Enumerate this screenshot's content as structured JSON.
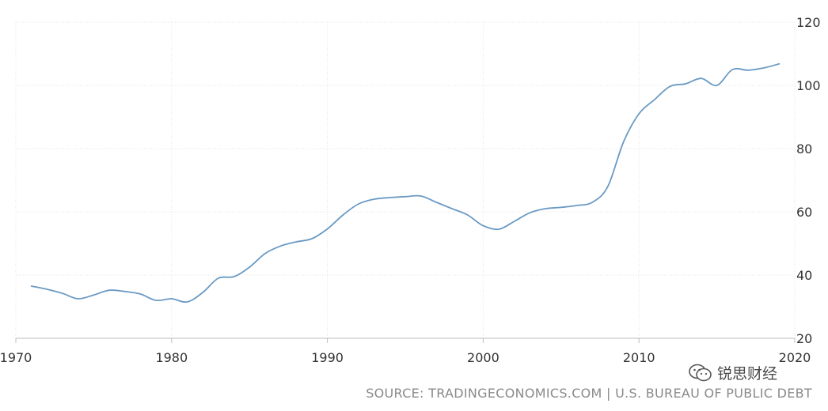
{
  "chart_data": {
    "type": "line",
    "title": "",
    "xlabel": "",
    "ylabel": "",
    "xlim": [
      1970,
      2020
    ],
    "ylim": [
      20,
      120
    ],
    "x_ticks": [
      "1970",
      "1980",
      "1990",
      "2000",
      "2010",
      "2020"
    ],
    "y_ticks": [
      "20",
      "40",
      "60",
      "80",
      "100",
      "120"
    ],
    "grid": true,
    "legend": "none",
    "series": [
      {
        "color": "#6a9ac4",
        "x": [
          1971,
          1972,
          1973,
          1974,
          1975,
          1976,
          1977,
          1978,
          1979,
          1980,
          1981,
          1982,
          1983,
          1984,
          1985,
          1986,
          1987,
          1988,
          1989,
          1990,
          1991,
          1992,
          1993,
          1994,
          1995,
          1996,
          1997,
          1998,
          1999,
          2000,
          2001,
          2002,
          2003,
          2004,
          2005,
          2006,
          2007,
          2008,
          2009,
          2010,
          2011,
          2012,
          2013,
          2014,
          2015,
          2016,
          2017,
          2018,
          2019
        ],
        "y": [
          36.5,
          35.5,
          34.2,
          32.5,
          33.7,
          35.2,
          34.8,
          34.0,
          32.0,
          32.5,
          31.5,
          34.5,
          39.0,
          39.5,
          42.5,
          46.8,
          49.2,
          50.5,
          51.5,
          54.6,
          59.0,
          62.5,
          64.0,
          64.5,
          64.8,
          65.0,
          63.0,
          61.0,
          59.0,
          55.6,
          54.5,
          57.0,
          59.7,
          61.0,
          61.4,
          62.0,
          63.0,
          68.0,
          82.0,
          91.0,
          95.5,
          99.7,
          100.5,
          102.2,
          100.0,
          105.0,
          104.8,
          105.5,
          106.8
        ]
      }
    ],
    "source": "SOURCE: TRADINGECONOMICS.COM | U.S. BUREAU OF PUBLIC DEBT"
  },
  "watermark": {
    "text": "锐思财经",
    "icon": "wechat-icon"
  }
}
